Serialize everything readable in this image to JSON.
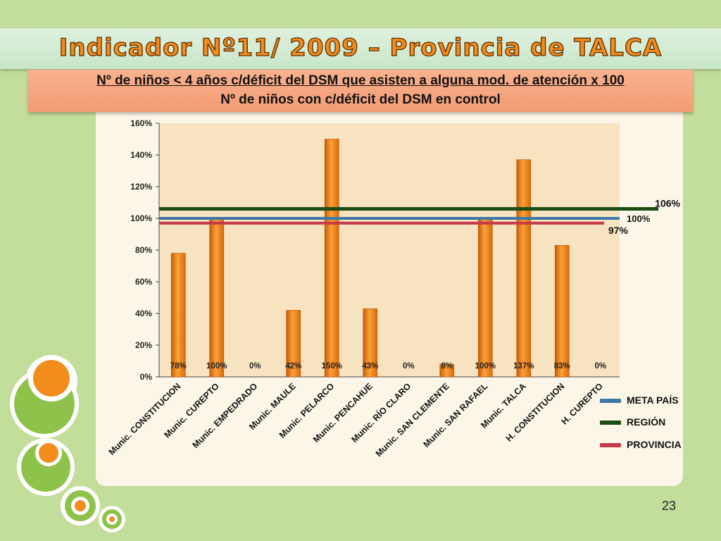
{
  "slide": {
    "title": "Indicador Nº11/ 2009 – Provincia de TALCA",
    "formula_numerator": "Nº de niños <  4 años c/déficit del DSM que asisten a alguna mod. de atención x 100",
    "formula_denominator": "Nº de niños con c/déficit del DSM en control",
    "page_number": "23"
  },
  "colors": {
    "background": "#c3dd9b",
    "bar": "#f0820f",
    "meta_pais": "#3d78a8",
    "region": "#1c4d14",
    "provincia": "#c43a4a",
    "title_text": "#f28c1c"
  },
  "chart_data": {
    "type": "bar",
    "categories": [
      "Munic. CONSTITUCION",
      "Munic. CUREPTO",
      "Munic. EMPEDRADO",
      "Munic. MAULE",
      "Munic. PELARCO",
      "Munic. PENCAHUE",
      "Munic. RÍO CLARO",
      "Munic. SAN CLEMENTE",
      "Munic. SAN RAFAEL",
      "Munic. TALCA",
      "H. CONSTITUCION",
      "H. CUREPTO"
    ],
    "values": [
      78,
      100,
      0,
      42,
      150,
      43,
      0,
      8,
      100,
      137,
      83,
      0
    ],
    "data_labels": [
      "78%",
      "100%",
      "0%",
      "42%",
      "150%",
      "43%",
      "0%",
      "8%",
      "100%",
      "137%",
      "83%",
      "0%"
    ],
    "ylim": [
      0,
      160
    ],
    "yticks": [
      0,
      20,
      40,
      60,
      80,
      100,
      120,
      140,
      160
    ],
    "ytick_labels": [
      "0%",
      "20%",
      "40%",
      "60%",
      "80%",
      "100%",
      "120%",
      "140%",
      "160%"
    ],
    "grid": false,
    "legend_position": "right-bottom",
    "reference_lines": [
      {
        "name": "META PAÍS",
        "value": 100,
        "label": "100%"
      },
      {
        "name": "REGIÓN",
        "value": 106,
        "label": "106%"
      },
      {
        "name": "PROVINCIA",
        "value": 97,
        "label": "97%"
      }
    ]
  },
  "legend": {
    "items": [
      {
        "label": "META PAÍS"
      },
      {
        "label": "REGIÓN"
      },
      {
        "label": "PROVINCIA"
      }
    ]
  }
}
